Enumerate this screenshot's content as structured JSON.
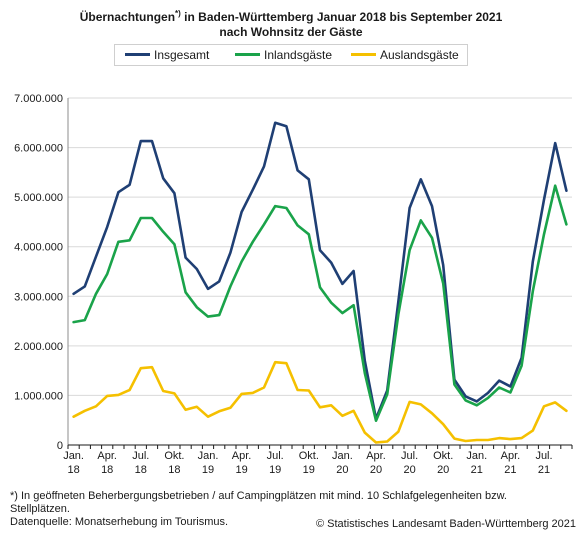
{
  "title_line1": "Übernachtungen",
  "title_sup": "*)",
  "title_line1_rest": " in Baden-Württemberg Januar 2018 bis September 2021",
  "title_line2": "nach Wohnsitz der Gäste",
  "footnote_line1": "*) In geöffneten Beherbergungsbetrieben / auf Campingplätzen mit mind. 10 Schlafgelegenheiten bzw.",
  "footnote_line2": "Stellplätzen.",
  "datasource": "Datenquelle: Monatserhebung im Tourismus.",
  "copyright": "© Statistisches Landesamt Baden-Württemberg 2021",
  "chart_data": {
    "type": "line",
    "x": [
      "Jan. 18",
      "Feb. 18",
      "Mär. 18",
      "Apr. 18",
      "Mai 18",
      "Jun. 18",
      "Jul. 18",
      "Aug. 18",
      "Sep. 18",
      "Okt. 18",
      "Nov. 18",
      "Dez. 18",
      "Jan. 19",
      "Feb. 19",
      "Mär. 19",
      "Apr. 19",
      "Mai 19",
      "Jun. 19",
      "Jul. 19",
      "Aug. 19",
      "Sep. 19",
      "Okt. 19",
      "Nov. 19",
      "Dez. 19",
      "Jan. 20",
      "Feb. 20",
      "Mär. 20",
      "Apr. 20",
      "Mai 20",
      "Jun. 20",
      "Jul. 20",
      "Aug. 20",
      "Sep. 20",
      "Okt. 20",
      "Nov. 20",
      "Dez. 20",
      "Jan. 21",
      "Feb. 21",
      "Mär. 21",
      "Apr. 21",
      "Mai 21",
      "Jun. 21",
      "Jul. 21",
      "Aug. 21",
      "Sep. 21"
    ],
    "x_tick_labels": [
      {
        "index": 0,
        "line1": "Jan.",
        "line2": "18"
      },
      {
        "index": 3,
        "line1": "Apr.",
        "line2": "18"
      },
      {
        "index": 6,
        "line1": "Jul.",
        "line2": "18"
      },
      {
        "index": 9,
        "line1": "Okt.",
        "line2": "18"
      },
      {
        "index": 12,
        "line1": "Jan.",
        "line2": "19"
      },
      {
        "index": 15,
        "line1": "Apr.",
        "line2": "19"
      },
      {
        "index": 18,
        "line1": "Jul.",
        "line2": "19"
      },
      {
        "index": 21,
        "line1": "Okt.",
        "line2": "19"
      },
      {
        "index": 24,
        "line1": "Jan.",
        "line2": "20"
      },
      {
        "index": 27,
        "line1": "Apr.",
        "line2": "20"
      },
      {
        "index": 30,
        "line1": "Jul.",
        "line2": "20"
      },
      {
        "index": 33,
        "line1": "Okt.",
        "line2": "20"
      },
      {
        "index": 36,
        "line1": "Jan.",
        "line2": "21"
      },
      {
        "index": 39,
        "line1": "Apr.",
        "line2": "21"
      },
      {
        "index": 42,
        "line1": "Jul.",
        "line2": "21"
      }
    ],
    "y_ticks": [
      0,
      1000000,
      2000000,
      3000000,
      4000000,
      5000000,
      6000000,
      7000000
    ],
    "y_tick_labels": [
      "0",
      "1.000.000",
      "2.000.000",
      "3.000.000",
      "4.000.000",
      "5.000.000",
      "6.000.000",
      "7.000.000"
    ],
    "ylim": [
      0,
      7000000
    ],
    "grid": true,
    "legend_position": "top",
    "series": [
      {
        "name": "Insgesamt",
        "color": "#1f3f74",
        "values": [
          3050000,
          3200000,
          3800000,
          4400000,
          5100000,
          5250000,
          6130000,
          6130000,
          5380000,
          5080000,
          3780000,
          3550000,
          3150000,
          3300000,
          3880000,
          4700000,
          5150000,
          5620000,
          6500000,
          6430000,
          5540000,
          5360000,
          3930000,
          3680000,
          3250000,
          3510000,
          1700000,
          530000,
          1100000,
          2900000,
          4780000,
          5360000,
          4820000,
          3630000,
          1320000,
          980000,
          880000,
          1050000,
          1300000,
          1180000,
          1760000,
          3700000,
          4950000,
          6090000,
          5130000
        ]
      },
      {
        "name": "Inlandsgäste",
        "color": "#1aa34a",
        "values": [
          2480000,
          2520000,
          3050000,
          3450000,
          4100000,
          4130000,
          4580000,
          4580000,
          4300000,
          4050000,
          3080000,
          2780000,
          2590000,
          2620000,
          3200000,
          3700000,
          4100000,
          4450000,
          4820000,
          4780000,
          4430000,
          4250000,
          3180000,
          2870000,
          2660000,
          2820000,
          1450000,
          490000,
          1020000,
          2640000,
          3930000,
          4530000,
          4180000,
          3260000,
          1220000,
          900000,
          800000,
          950000,
          1160000,
          1060000,
          1600000,
          3100000,
          4250000,
          5230000,
          4450000
        ]
      },
      {
        "name": "Auslandsgäste",
        "color": "#f5c000",
        "values": [
          570000,
          690000,
          780000,
          990000,
          1010000,
          1110000,
          1550000,
          1570000,
          1090000,
          1040000,
          710000,
          770000,
          570000,
          680000,
          750000,
          1030000,
          1050000,
          1160000,
          1670000,
          1650000,
          1110000,
          1100000,
          760000,
          800000,
          590000,
          690000,
          250000,
          50000,
          70000,
          270000,
          870000,
          820000,
          640000,
          420000,
          130000,
          80000,
          100000,
          100000,
          140000,
          120000,
          140000,
          290000,
          780000,
          860000,
          690000
        ]
      }
    ]
  }
}
